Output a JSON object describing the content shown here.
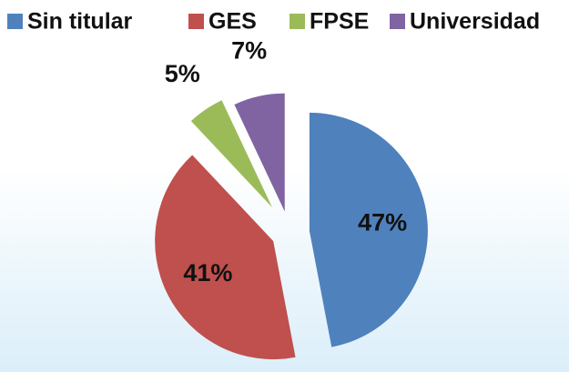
{
  "chart_data": {
    "type": "pie",
    "categories": [
      "Sin titular",
      "GES",
      "FPSE",
      "Universidad"
    ],
    "values": [
      47,
      41,
      5,
      7
    ],
    "value_labels": [
      "47%",
      "41%",
      "5%",
      "7%"
    ],
    "colors": [
      "#4f81bd",
      "#c0504d",
      "#9bbb59",
      "#8064a2"
    ],
    "legend": "top"
  }
}
